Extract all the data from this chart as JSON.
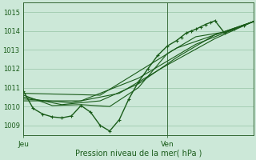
{
  "xlabel": "Pression niveau de la mer( hPa )",
  "background_color": "#cce8d8",
  "grid_color": "#88bb99",
  "line_color": "#1a5c1a",
  "axis_color": "#336633",
  "text_color": "#1a5c1a",
  "ylim": [
    1008.5,
    1015.5
  ],
  "yticks": [
    1009,
    1010,
    1011,
    1012,
    1013,
    1014,
    1015
  ],
  "xlim": [
    0,
    48
  ],
  "x_jeu": 0.0,
  "x_ven": 30.0,
  "series": [
    {
      "x": [
        0,
        2,
        4,
        6,
        8,
        10,
        12,
        14,
        16,
        18,
        20,
        22,
        24,
        26,
        28,
        30,
        32,
        34,
        36,
        38,
        40,
        42,
        44,
        46,
        48
      ],
      "y": [
        1010.8,
        1009.9,
        1009.6,
        1009.45,
        1009.4,
        1009.5,
        1010.05,
        1009.7,
        1009.0,
        1008.7,
        1009.3,
        1010.4,
        1011.3,
        1012.0,
        1012.7,
        1013.2,
        1013.5,
        1013.9,
        1014.1,
        1014.35,
        1014.55,
        1013.9,
        1014.1,
        1014.3,
        1014.5
      ],
      "markers": true,
      "lw": 1.0
    },
    {
      "x": [
        0,
        6,
        12,
        18,
        24,
        30,
        36,
        42,
        48
      ],
      "y": [
        1010.6,
        1010.05,
        1010.1,
        1010.0,
        1011.0,
        1012.8,
        1013.7,
        1013.95,
        1014.5
      ],
      "markers": false,
      "lw": 0.8
    },
    {
      "x": [
        0,
        8,
        16,
        24,
        32,
        40,
        48
      ],
      "y": [
        1010.5,
        1010.1,
        1010.3,
        1011.2,
        1012.6,
        1013.8,
        1014.5
      ],
      "markers": false,
      "lw": 0.8
    },
    {
      "x": [
        0,
        10,
        20,
        30,
        40,
        48
      ],
      "y": [
        1010.4,
        1010.2,
        1010.7,
        1012.2,
        1013.6,
        1014.5
      ],
      "markers": false,
      "lw": 0.8
    },
    {
      "x": [
        0,
        12,
        24,
        36,
        48
      ],
      "y": [
        1010.3,
        1010.3,
        1011.5,
        1013.3,
        1014.5
      ],
      "markers": false,
      "lw": 0.8
    },
    {
      "x": [
        0,
        16,
        32,
        48
      ],
      "y": [
        1010.7,
        1010.6,
        1013.1,
        1014.5
      ],
      "markers": false,
      "lw": 0.8
    }
  ],
  "markers_main": [
    [
      0,
      1010.8
    ],
    [
      2,
      1009.9
    ],
    [
      4,
      1009.6
    ],
    [
      6,
      1009.45
    ],
    [
      8,
      1009.4
    ],
    [
      10,
      1009.5
    ],
    [
      12,
      1010.05
    ],
    [
      14,
      1009.7
    ],
    [
      16,
      1009.0
    ],
    [
      18,
      1008.7
    ],
    [
      20,
      1009.3
    ],
    [
      22,
      1010.4
    ],
    [
      24,
      1011.3
    ],
    [
      26,
      1012.0
    ],
    [
      28,
      1012.7
    ],
    [
      30,
      1013.2
    ],
    [
      32,
      1013.5
    ],
    [
      33,
      1013.65
    ],
    [
      34,
      1013.9
    ],
    [
      35,
      1014.0
    ],
    [
      36,
      1014.1
    ],
    [
      37,
      1014.2
    ],
    [
      38,
      1014.35
    ],
    [
      39,
      1014.45
    ],
    [
      40,
      1014.55
    ],
    [
      42,
      1013.9
    ],
    [
      44,
      1014.1
    ],
    [
      46,
      1014.3
    ],
    [
      48,
      1014.5
    ]
  ]
}
